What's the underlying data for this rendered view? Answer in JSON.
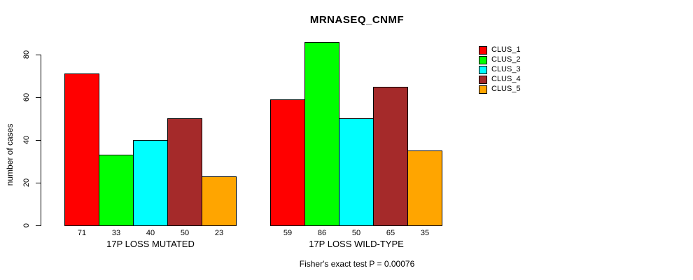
{
  "chart_data": {
    "type": "bar",
    "title": "MRNASEQ_CNMF",
    "ylabel": "number of cases",
    "xlabel": "",
    "yticks": [
      0,
      20,
      40,
      60,
      80
    ],
    "ylim": [
      0,
      86
    ],
    "grid": false,
    "legend_position": "right-outside",
    "categories": [
      "17P LOSS MUTATED",
      "17P LOSS WILD-TYPE"
    ],
    "series": [
      {
        "name": "CLUS_1",
        "color": "#FF0000",
        "values": [
          71,
          59
        ]
      },
      {
        "name": "CLUS_2",
        "color": "#00FF00",
        "values": [
          33,
          86
        ]
      },
      {
        "name": "CLUS_3",
        "color": "#00FFFF",
        "values": [
          40,
          50
        ]
      },
      {
        "name": "CLUS_4",
        "color": "#A52A2A",
        "values": [
          50,
          65
        ]
      },
      {
        "name": "CLUS_5",
        "color": "#FFA500",
        "values": [
          23,
          35
        ]
      }
    ],
    "bar_value_labels": [
      [
        "71",
        "33",
        "40",
        "50",
        "23"
      ],
      [
        "59",
        "86",
        "50",
        "65",
        "35"
      ]
    ],
    "annotation": "Fisher's exact test P = 0.00076"
  }
}
